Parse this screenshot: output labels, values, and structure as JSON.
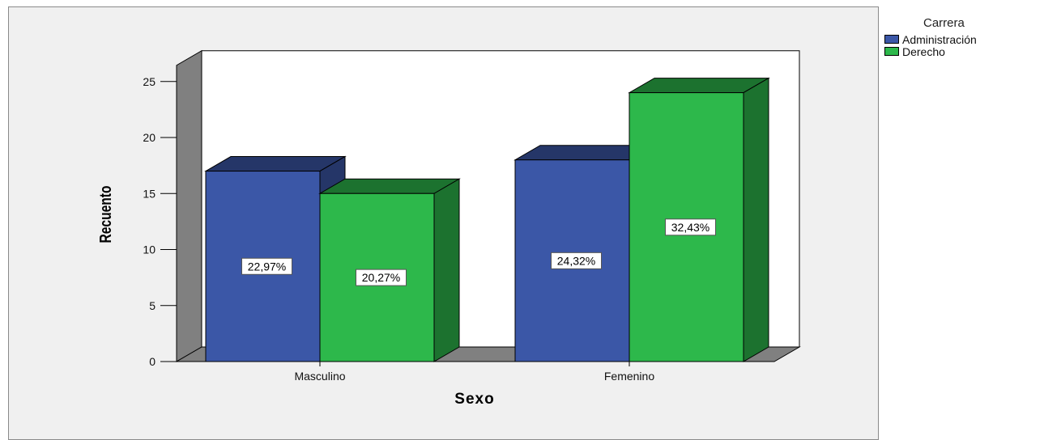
{
  "chart_data": {
    "type": "bar",
    "title": "",
    "xlabel": "Sexo",
    "ylabel": "Recuento",
    "categories": [
      "Masculino",
      "Femenino"
    ],
    "ylim": [
      0,
      25
    ],
    "yticks": [
      "0",
      "5",
      "10",
      "15",
      "20",
      "25"
    ],
    "legend_title": "Carrera",
    "legend_position": "top-right",
    "series": [
      {
        "name": "Administración",
        "color": "#3b57a7",
        "values": [
          17,
          18
        ],
        "labels": [
          "22,97%",
          "24,32%"
        ]
      },
      {
        "name": "Derecho",
        "color": "#2db84b",
        "values": [
          15,
          24
        ],
        "labels": [
          "20,27%",
          "32,43%"
        ]
      }
    ]
  }
}
